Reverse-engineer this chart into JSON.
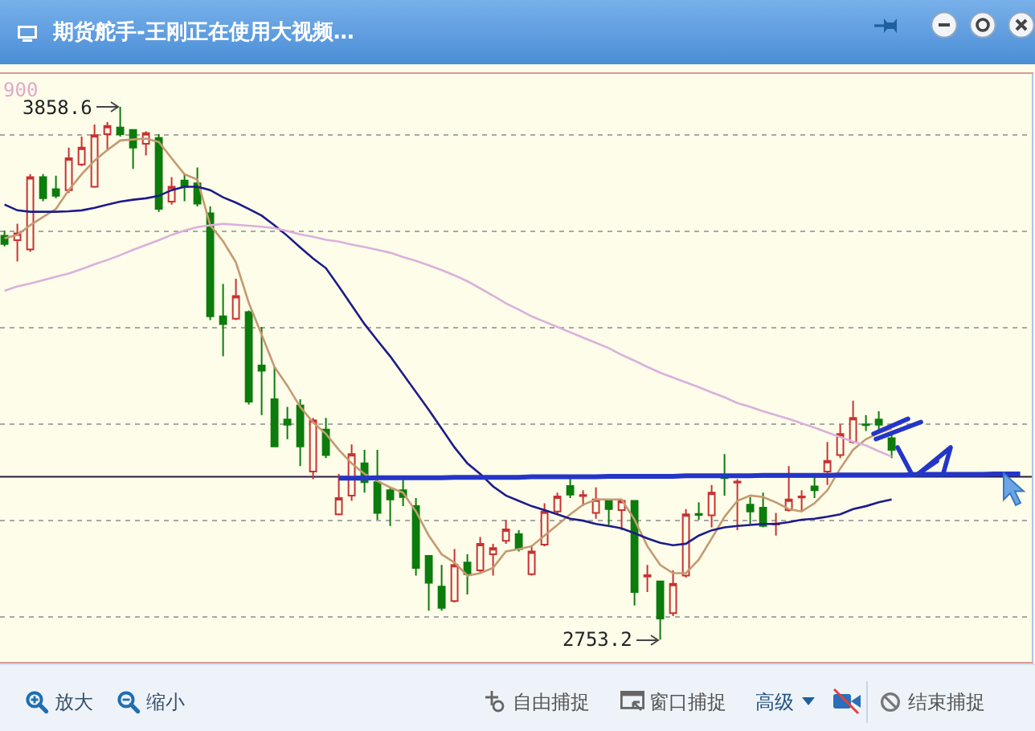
{
  "chart_data": {
    "type": "candlestick",
    "title": "期货舵手-王刚正在使用大视频…",
    "categories": [
      null,
      null,
      null,
      null,
      null,
      null,
      null,
      null,
      null,
      null,
      null,
      null,
      null,
      null,
      null,
      null,
      null,
      null,
      null,
      null,
      null,
      null,
      null,
      null,
      null,
      null,
      null,
      null,
      null,
      null,
      null,
      null,
      null,
      null,
      null,
      null,
      null,
      null,
      null,
      null,
      null,
      null,
      null,
      null,
      null,
      null,
      null,
      null,
      null,
      null,
      null,
      null,
      null,
      null,
      null,
      null,
      null,
      null,
      null,
      null,
      null,
      null,
      null,
      null,
      null,
      null,
      null,
      null,
      null,
      null,
      null,
      null,
      null,
      null,
      null,
      null,
      null,
      null,
      null,
      null
    ],
    "ohlc": [
      [
        3591,
        3602,
        3569,
        3574
      ],
      [
        3582,
        3616,
        3538,
        3596
      ],
      [
        3563,
        3719,
        3558,
        3713
      ],
      [
        3713,
        3719,
        3663,
        3669
      ],
      [
        3688,
        3716,
        3669,
        3674
      ],
      [
        3686,
        3774,
        3680,
        3752
      ],
      [
        3739,
        3797,
        3736,
        3774
      ],
      [
        3693,
        3822,
        3691,
        3800
      ],
      [
        3802,
        3827,
        3769,
        3819
      ],
      [
        3816,
        3858.6,
        3797,
        3802
      ],
      [
        3811,
        3811,
        3730,
        3774
      ],
      [
        3782,
        3808,
        3758,
        3804
      ],
      [
        3794,
        3802,
        3641,
        3647
      ],
      [
        3662,
        3713,
        3656,
        3693
      ],
      [
        3706,
        3719,
        3663,
        3693
      ],
      [
        3700,
        3733,
        3652,
        3658
      ],
      [
        3638,
        3652,
        3416,
        3424
      ],
      [
        3424,
        3491,
        3341,
        3408
      ],
      [
        3419,
        3502,
        3416,
        3466
      ],
      [
        3433,
        3436,
        3241,
        3247
      ],
      [
        3322,
        3402,
        3219,
        3311
      ],
      [
        3252,
        3319,
        3154,
        3154
      ],
      [
        3210,
        3236,
        3169,
        3199
      ],
      [
        3239,
        3252,
        3113,
        3154
      ],
      [
        3102,
        3213,
        3086,
        3208
      ],
      [
        3189,
        3213,
        3130,
        3136
      ],
      [
        3013,
        3097,
        3011,
        3047
      ],
      [
        3052,
        3158,
        3041,
        3138
      ],
      [
        3119,
        3147,
        3058,
        3080
      ],
      [
        3080,
        3147,
        3002,
        3016
      ],
      [
        3063,
        3069,
        2989,
        3044
      ],
      [
        3063,
        3086,
        3030,
        3049
      ],
      [
        3030,
        3047,
        2886,
        2902
      ],
      [
        2927,
        2927,
        2813,
        2871
      ],
      [
        2863,
        2908,
        2813,
        2819
      ],
      [
        2833,
        2941,
        2830,
        2908
      ],
      [
        2913,
        2930,
        2847,
        2889
      ],
      [
        2897,
        2966,
        2891,
        2952
      ],
      [
        2930,
        2952,
        2886,
        2943
      ],
      [
        2958,
        3002,
        2952,
        2982
      ],
      [
        2972,
        2980,
        2936,
        2941
      ],
      [
        2889,
        2949,
        2886,
        2936
      ],
      [
        2950,
        3036,
        2947,
        3019
      ],
      [
        3019,
        3058,
        3013,
        3050
      ],
      [
        3072,
        3091,
        3047,
        3054
      ],
      [
        3051,
        3063,
        3030,
        3053
      ],
      [
        3016,
        3069,
        3004,
        3044
      ],
      [
        3041,
        3044,
        2991,
        3024
      ],
      [
        3022,
        3044,
        2980,
        3041
      ],
      [
        3041,
        3041,
        2824,
        2852
      ],
      [
        2884,
        2908,
        2852,
        2887
      ],
      [
        2874,
        2874,
        2753.2,
        2797
      ],
      [
        2808,
        2897,
        2802,
        2869
      ],
      [
        2886,
        3024,
        2882,
        3013
      ],
      [
        3014,
        3038,
        3002,
        3012
      ],
      [
        3011,
        3074,
        2986,
        3058
      ],
      [
        3093,
        3138,
        3052,
        3088
      ],
      [
        3079,
        3086,
        2980,
        3081
      ],
      [
        3033,
        3049,
        2993,
        3019
      ],
      [
        3027,
        3058,
        2986,
        2989
      ],
      [
        2992,
        3016,
        2969,
        2994
      ],
      [
        3022,
        3113,
        3019,
        3044
      ],
      [
        3048,
        3063,
        3019,
        3050
      ],
      [
        3071,
        3091,
        3047,
        3063
      ],
      [
        3102,
        3163,
        3074,
        3124
      ],
      [
        3136,
        3200,
        3130,
        3180
      ],
      [
        3163,
        3249,
        3160,
        3213
      ],
      [
        3200,
        3219,
        3186,
        3198
      ],
      [
        3210,
        3227,
        3180,
        3199
      ],
      [
        3171,
        3178,
        3130,
        3147
      ],
      null,
      null,
      null,
      null,
      null,
      null,
      null,
      null,
      null,
      null
    ],
    "colors": [
      "#0c7c0c",
      "#c83232",
      "#c83232",
      "#0c7c0c",
      "#0c7c0c",
      "#c83232",
      "#c83232",
      "#c83232",
      "#c83232",
      "#0c7c0c",
      "#0c7c0c",
      "#c83232",
      "#0c7c0c",
      "#c83232",
      "#0c7c0c",
      "#0c7c0c",
      "#0c7c0c",
      "#0c7c0c",
      "#c83232",
      "#0c7c0c",
      "#0c7c0c",
      "#0c7c0c",
      "#0c7c0c",
      "#0c7c0c",
      "#c83232",
      "#0c7c0c",
      "#c83232",
      "#c83232",
      "#0c7c0c",
      "#0c7c0c",
      "#0c7c0c",
      "#0c7c0c",
      "#0c7c0c",
      "#0c7c0c",
      "#0c7c0c",
      "#c83232",
      "#0c7c0c",
      "#c83232",
      "#c83232",
      "#c83232",
      "#0c7c0c",
      "#c83232",
      "#c83232",
      "#c83232",
      "#0c7c0c",
      "#c83232",
      "#c83232",
      "#0c7c0c",
      "#c83232",
      "#0c7c0c",
      "#c83232",
      "#0c7c0c",
      "#c83232",
      "#c83232",
      "#0c7c0c",
      "#c83232",
      "#0c7c0c",
      "#c83232",
      "#0c7c0c",
      "#0c7c0c",
      "#c83232",
      "#c83232",
      "#c83232",
      "#0c7c0c",
      "#c83232",
      "#c83232",
      "#c83232",
      "#0c7c0c",
      "#0c7c0c",
      "#0c7c0c",
      null,
      null,
      null,
      null,
      null,
      null,
      null,
      null,
      null,
      null
    ],
    "series": [
      {
        "type": "line",
        "color": "#c49a72",
        "values": [
          3586,
          3593,
          3613,
          3630,
          3647,
          3686,
          3719,
          3747,
          3769,
          3789,
          3791,
          3793,
          3786,
          3752,
          3719,
          3708,
          3613,
          3580,
          3536,
          3452,
          3386,
          3319,
          3280,
          3236,
          3204,
          3180,
          3147,
          3119,
          3097,
          3082,
          3069,
          3058,
          3019,
          2969,
          2930,
          2913,
          2886,
          2891,
          2902,
          2936,
          2941,
          2947,
          2969,
          2991,
          3013,
          3033,
          3044,
          3044,
          3044,
          3002,
          2947,
          2908,
          2891,
          2891,
          2919,
          2963,
          3008,
          3041,
          3052,
          3049,
          3038,
          3024,
          3019,
          3036,
          3063,
          3108,
          3147,
          3169,
          3182,
          3191,
          null,
          null,
          null,
          null,
          null,
          null,
          null,
          null,
          null,
          null
        ]
      },
      {
        "type": "line",
        "color": "#1c1c8a",
        "values": [
          3656,
          3644,
          3641,
          3641,
          3641,
          3642,
          3644,
          3649,
          3656,
          3662,
          3666,
          3669,
          3674,
          3686,
          3693,
          3693,
          3686,
          3671,
          3660,
          3647,
          3633,
          3613,
          3591,
          3567,
          3544,
          3524,
          3486,
          3447,
          3408,
          3374,
          3341,
          3304,
          3267,
          3230,
          3191,
          3152,
          3119,
          3097,
          3071,
          3052,
          3041,
          3030,
          3022,
          3013,
          3004,
          3000,
          2993,
          2989,
          2984,
          2974,
          2963,
          2954,
          2949,
          2952,
          2969,
          2980,
          2986,
          2989,
          2991,
          2993,
          2993,
          2997,
          3002,
          3004,
          3008,
          3013,
          3024,
          3030,
          3038,
          3044,
          null,
          null,
          null,
          null,
          null,
          null,
          null,
          null,
          null,
          null
        ]
      },
      {
        "type": "line",
        "color": "#dcb0dc",
        "values": [
          3477,
          3486,
          3492,
          3499,
          3506,
          3513,
          3522,
          3532,
          3541,
          3551,
          3562,
          3572,
          3582,
          3593,
          3602,
          3609,
          3613,
          3616,
          3614,
          3612,
          3610,
          3607,
          3601,
          3594,
          3589,
          3583,
          3579,
          3573,
          3568,
          3562,
          3556,
          3547,
          3539,
          3530,
          3520,
          3509,
          3497,
          3482,
          3467,
          3451,
          3438,
          3424,
          3413,
          3402,
          3391,
          3380,
          3369,
          3358,
          3344,
          3332,
          3319,
          3307,
          3297,
          3287,
          3277,
          3266,
          3256,
          3244,
          3236,
          3227,
          3219,
          3211,
          3202,
          3193,
          3183,
          3173,
          3164,
          3156,
          3144,
          3133,
          null,
          null,
          null,
          null,
          null,
          null,
          null,
          null,
          null,
          null
        ]
      },
      {
        "type": "line",
        "color": "#2436c8",
        "values": [
          null,
          null,
          null,
          null,
          null,
          null,
          null,
          null,
          null,
          null,
          null,
          null,
          null,
          null,
          null,
          null,
          null,
          null,
          null,
          null,
          null,
          null,
          null,
          null,
          null,
          null,
          3088,
          3088,
          3088,
          3089,
          3089,
          3089,
          3089,
          3089,
          3089,
          3090,
          3090,
          3090,
          3090,
          3090,
          3090,
          3091,
          3091,
          3091,
          3091,
          3091,
          3091,
          3092,
          3092,
          3092,
          3092,
          3092,
          3092,
          3093,
          3093,
          3093,
          3093,
          3093,
          3093,
          3094,
          3094,
          3094,
          3094,
          3094,
          3094,
          3095,
          3095,
          3095,
          3095,
          3095,
          3095,
          3096,
          3096,
          3096,
          3096,
          3096,
          3096,
          3097,
          3097,
          3097
        ]
      }
    ],
    "grid": "y",
    "tick_labels": false,
    "ref_lines": [
      {
        "axis": "y",
        "value": 3091,
        "color": "#2b1b3b"
      }
    ],
    "annotations": [
      "900",
      "3858.6",
      "2753.2",
      "放大",
      "缩小",
      "自由捕捉",
      "窗口捕捉",
      "高级",
      "结束捕捉"
    ]
  }
}
